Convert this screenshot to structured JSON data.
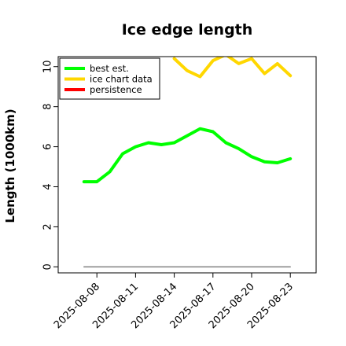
{
  "chart_data": {
    "type": "line",
    "title": "Ice edge length",
    "xlabel": "",
    "ylabel": "Length (1000km)",
    "ylim": [
      -0.3,
      10.5
    ],
    "y_ticks": [
      0,
      2,
      4,
      6,
      8,
      10
    ],
    "x_ticks": [
      "2025-08-08",
      "2025-08-11",
      "2025-08-14",
      "2025-08-17",
      "2025-08-20",
      "2025-08-23"
    ],
    "x_range": [
      "2025-08-05",
      "2025-08-25"
    ],
    "grid": false,
    "legend_position": "top-left",
    "series": [
      {
        "name": "best est.",
        "color": "#00ff00",
        "x": [
          "2025-08-07",
          "2025-08-08",
          "2025-08-09",
          "2025-08-10",
          "2025-08-11",
          "2025-08-12",
          "2025-08-13",
          "2025-08-14",
          "2025-08-15",
          "2025-08-16",
          "2025-08-17",
          "2025-08-18",
          "2025-08-19",
          "2025-08-20",
          "2025-08-21",
          "2025-08-22",
          "2025-08-23"
        ],
        "values": [
          4.25,
          4.25,
          4.75,
          5.65,
          6.0,
          6.2,
          6.1,
          6.2,
          6.55,
          6.9,
          6.75,
          6.2,
          5.9,
          5.5,
          5.25,
          5.2,
          5.4
        ]
      },
      {
        "name": "ice chart data",
        "color": "#ffd700",
        "x": [
          "2025-08-14",
          "2025-08-15",
          "2025-08-16",
          "2025-08-17",
          "2025-08-18",
          "2025-08-19",
          "2025-08-20",
          "2025-08-21",
          "2025-08-22",
          "2025-08-23"
        ],
        "values": [
          10.4,
          9.8,
          9.5,
          10.3,
          10.6,
          10.15,
          10.4,
          9.65,
          10.15,
          9.55
        ]
      },
      {
        "name": "persistence",
        "color": "#ff0000",
        "x": [],
        "values": []
      },
      {
        "name": "",
        "color": "#808080",
        "x": [
          "2025-08-07",
          "2025-08-23"
        ],
        "values": [
          0,
          0
        ]
      }
    ]
  }
}
